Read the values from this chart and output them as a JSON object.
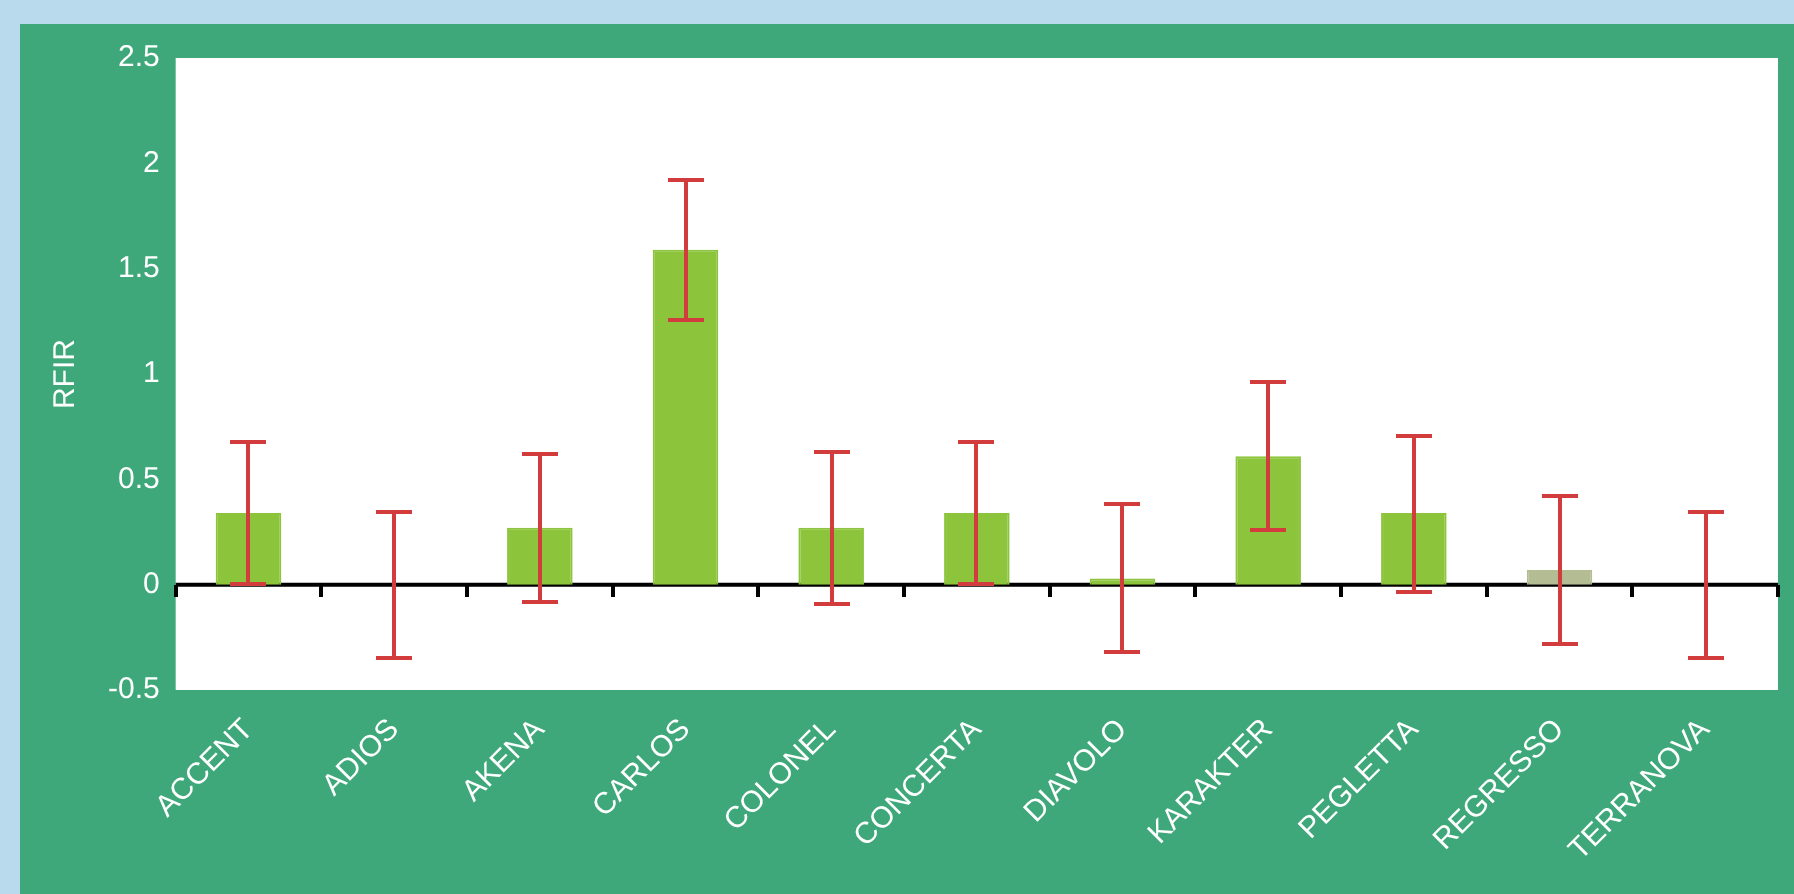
{
  "chart_data": {
    "type": "bar",
    "ylabel": "RFIR",
    "categories": [
      "ACCENT",
      "ADIOS",
      "AKENA",
      "CARLOS",
      "COLONEL",
      "CONCERTA",
      "DIAVOLO",
      "KARAKTER",
      "PEGLETTA",
      "REGRESSO",
      "TERRANOVA"
    ],
    "values": [
      0.34,
      0,
      0.27,
      1.59,
      0.27,
      0.34,
      0.03,
      0.61,
      0.34,
      0.07,
      0
    ],
    "colors": [
      "#8cc43c",
      "#8cc43c",
      "#8cc43c",
      "#8cc43c",
      "#8cc43c",
      "#8cc43c",
      "#8cc43c",
      "#8cc43c",
      "#8cc43c",
      "#b4bc94",
      "#8cc43c"
    ],
    "errors": [
      0.34,
      0.35,
      0.35,
      0.33,
      0.36,
      0.34,
      0.35,
      0.35,
      0.37,
      0.35,
      0.35
    ],
    "ref_lines": [
      {
        "axis": "y",
        "value": 0,
        "color": "#000000"
      }
    ],
    "ylim": [
      -0.5,
      2.5
    ],
    "yticks": [
      -0.5,
      0,
      0.5,
      1,
      1.5,
      2,
      2.5
    ],
    "grid": false,
    "legend": false
  }
}
